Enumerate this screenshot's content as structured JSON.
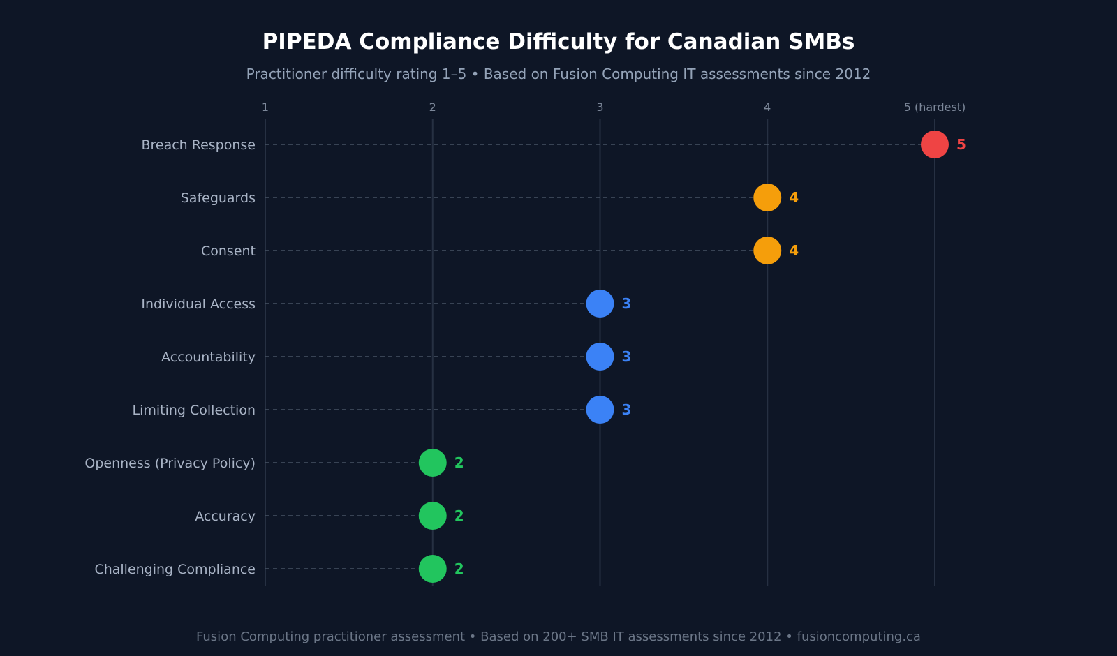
{
  "chart_data": {
    "type": "lollipop",
    "title": "PIPEDA Compliance Difficulty for Canadian SMBs",
    "subtitle": "Practitioner difficulty rating 1–5 • Based on Fusion Computing IT assessments since 2012",
    "footer": "Fusion Computing practitioner assessment • Based on 200+ SMB IT assessments since 2012 • fusioncomputing.ca",
    "xlim": [
      1,
      5
    ],
    "x_ticks": [
      {
        "value": 1,
        "label": "1"
      },
      {
        "value": 2,
        "label": "2"
      },
      {
        "value": 3,
        "label": "3"
      },
      {
        "value": 4,
        "label": "4"
      },
      {
        "value": 5,
        "label": "5 (hardest)"
      }
    ],
    "grid": true,
    "categories": [
      "Breach Response",
      "Safeguards",
      "Consent",
      "Individual Access",
      "Accountability",
      "Limiting Collection",
      "Openness (Privacy Policy)",
      "Accuracy",
      "Challenging Compliance"
    ],
    "values": [
      5,
      4,
      4,
      3,
      3,
      3,
      2,
      2,
      2
    ],
    "value_labels": [
      "5",
      "4",
      "4",
      "3",
      "3",
      "3",
      "2",
      "2",
      "2"
    ],
    "level_colors": {
      "5": "#ef4444",
      "4": "#f59e0b",
      "3": "#3b82f6",
      "2": "#22c55e"
    }
  }
}
